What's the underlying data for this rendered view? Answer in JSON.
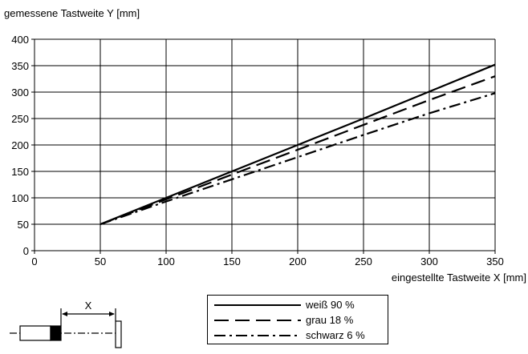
{
  "chart_data": {
    "type": "line",
    "ylabel": "gemessene Tastweite Y [mm]",
    "xlabel": "eingestellte Tastweite X [mm]",
    "xlim": [
      0,
      350
    ],
    "ylim": [
      0,
      400
    ],
    "x_ticks": [
      0,
      50,
      100,
      150,
      200,
      250,
      300,
      350
    ],
    "y_ticks": [
      0,
      50,
      100,
      150,
      200,
      250,
      300,
      350,
      400
    ],
    "grid": true,
    "legend_position": "bottom-center",
    "series": [
      {
        "name": "weiß 90 %",
        "style": "solid",
        "x": [
          50,
          100,
          150,
          200,
          250,
          300,
          350
        ],
        "y": [
          50,
          100,
          150,
          200,
          250,
          301,
          352
        ]
      },
      {
        "name": "grau 18 %",
        "style": "dashed",
        "x": [
          50,
          100,
          150,
          200,
          250,
          300,
          350
        ],
        "y": [
          50,
          97,
          144,
          191,
          238,
          285,
          330
        ]
      },
      {
        "name": "schwarz 6 %",
        "style": "dash-dot",
        "x": [
          50,
          100,
          150,
          200,
          250,
          300,
          350
        ],
        "y": [
          50,
          93,
          135,
          177,
          219,
          260,
          298
        ]
      }
    ]
  },
  "diagram": {
    "distance_label": "X"
  }
}
